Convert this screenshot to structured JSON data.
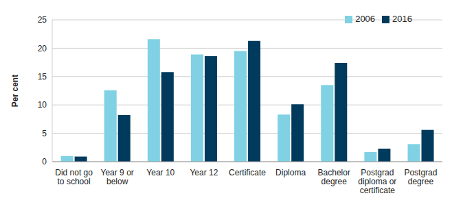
{
  "chart_data": {
    "type": "bar",
    "y_label": "Per cent",
    "categories": [
      "Did not go to school",
      "Year 9 or below",
      "Year 10",
      "Year 12",
      "Certificate",
      "Diploma",
      "Bachelor degree",
      "Postgrad diploma or certificate",
      "Postgrad degree"
    ],
    "series": [
      {
        "name": "2006",
        "color": "#7fd1e3",
        "values": [
          1.0,
          12.6,
          21.6,
          18.9,
          19.5,
          8.3,
          13.5,
          1.7,
          3.1
        ]
      },
      {
        "name": "2016",
        "color": "#003a5c",
        "values": [
          0.9,
          8.2,
          15.8,
          18.6,
          21.3,
          10.1,
          17.4,
          2.3,
          5.6
        ]
      }
    ],
    "ylim": [
      0,
      25
    ],
    "yticks": [
      0,
      5,
      10,
      15,
      20,
      25
    ],
    "grid": true,
    "legend": "upper right"
  }
}
